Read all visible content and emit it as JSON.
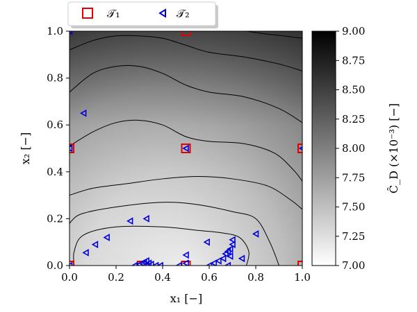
{
  "chart_data": {
    "type": "scatter",
    "xlabel": "x₁ [−]",
    "ylabel": "x₂ [−]",
    "xlim": [
      0.0,
      1.0
    ],
    "ylim": [
      0.0,
      1.0
    ],
    "x_ticks": [
      "0.0",
      "0.2",
      "0.4",
      "0.6",
      "0.8",
      "1.0"
    ],
    "y_ticks": [
      "0.0",
      "0.2",
      "0.4",
      "0.6",
      "0.8",
      "1.0"
    ],
    "background": "filled contour, white (low) to black (high)",
    "colorbar": {
      "label": "Ĉ_D (×10⁻³) [−]",
      "range": [
        7.0,
        9.0
      ],
      "ticks": [
        "7.00",
        "7.25",
        "7.50",
        "7.75",
        "8.00",
        "8.25",
        "8.50",
        "8.75",
        "9.00"
      ]
    },
    "legend": {
      "placement": "top",
      "entries": [
        {
          "label": "𝒯₁",
          "marker": "square",
          "color": "#e00000"
        },
        {
          "label": "𝒯₂",
          "marker": "triangle-left",
          "color": "#0000dd"
        }
      ]
    },
    "series": [
      {
        "name": "𝒯₁",
        "points": [
          {
            "x": 0.5,
            "y": 1.0
          },
          {
            "x": 0.0,
            "y": 0.5
          },
          {
            "x": 0.5,
            "y": 0.5
          },
          {
            "x": 1.0,
            "y": 0.5
          },
          {
            "x": 0.0,
            "y": 0.0
          },
          {
            "x": 0.31,
            "y": 0.0
          },
          {
            "x": 0.5,
            "y": 0.0
          },
          {
            "x": 1.0,
            "y": 0.0
          }
        ]
      },
      {
        "name": "𝒯₂",
        "points": [
          {
            "x": 0.0,
            "y": 1.0
          },
          {
            "x": 0.06,
            "y": 0.65
          },
          {
            "x": 0.0,
            "y": 0.5
          },
          {
            "x": 0.5,
            "y": 0.5
          },
          {
            "x": 1.0,
            "y": 0.5
          },
          {
            "x": 0.26,
            "y": 0.19
          },
          {
            "x": 0.33,
            "y": 0.2
          },
          {
            "x": 0.16,
            "y": 0.12
          },
          {
            "x": 0.11,
            "y": 0.09
          },
          {
            "x": 0.07,
            "y": 0.055
          },
          {
            "x": 0.0,
            "y": 0.0
          },
          {
            "x": 0.8,
            "y": 0.135
          },
          {
            "x": 0.59,
            "y": 0.1
          },
          {
            "x": 0.5,
            "y": 0.045
          },
          {
            "x": 0.5,
            "y": 0.01
          },
          {
            "x": 0.74,
            "y": 0.03
          },
          {
            "x": 0.7,
            "y": 0.11
          },
          {
            "x": 0.7,
            "y": 0.09
          },
          {
            "x": 0.69,
            "y": 0.07
          },
          {
            "x": 0.68,
            "y": 0.06
          },
          {
            "x": 0.67,
            "y": 0.05
          },
          {
            "x": 0.69,
            "y": 0.04
          },
          {
            "x": 0.66,
            "y": 0.03
          },
          {
            "x": 0.64,
            "y": 0.02
          },
          {
            "x": 0.62,
            "y": 0.01
          },
          {
            "x": 0.68,
            "y": 0.0
          },
          {
            "x": 0.6,
            "y": 0.0
          },
          {
            "x": 0.28,
            "y": 0.0
          },
          {
            "x": 0.3,
            "y": 0.005
          },
          {
            "x": 0.31,
            "y": 0.01
          },
          {
            "x": 0.32,
            "y": 0.015
          },
          {
            "x": 0.33,
            "y": 0.02
          },
          {
            "x": 0.34,
            "y": 0.01
          },
          {
            "x": 0.35,
            "y": 0.005
          },
          {
            "x": 0.37,
            "y": 0.0
          },
          {
            "x": 0.39,
            "y": 0.0
          },
          {
            "x": 0.47,
            "y": 0.0
          }
        ]
      }
    ],
    "contour_lines": [
      [
        [
          0.02,
          0.0
        ],
        [
          0.02,
          0.06
        ],
        [
          0.06,
          0.13
        ],
        [
          0.2,
          0.165
        ],
        [
          0.4,
          0.165
        ],
        [
          0.55,
          0.15
        ],
        [
          0.65,
          0.14
        ],
        [
          0.73,
          0.12
        ],
        [
          0.77,
          0.06
        ],
        [
          0.76,
          0.0
        ]
      ],
      [
        [
          0.0,
          0.18
        ],
        [
          0.05,
          0.22
        ],
        [
          0.2,
          0.25
        ],
        [
          0.4,
          0.27
        ],
        [
          0.55,
          0.26
        ],
        [
          0.7,
          0.23
        ],
        [
          0.8,
          0.2
        ],
        [
          0.86,
          0.1
        ],
        [
          0.9,
          0.0
        ]
      ],
      [
        [
          0.0,
          0.3
        ],
        [
          0.1,
          0.33
        ],
        [
          0.25,
          0.35
        ],
        [
          0.4,
          0.37
        ],
        [
          0.55,
          0.38
        ],
        [
          0.7,
          0.37
        ],
        [
          0.85,
          0.34
        ],
        [
          0.95,
          0.28
        ],
        [
          1.0,
          0.24
        ]
      ],
      [
        [
          0.0,
          0.51
        ],
        [
          0.1,
          0.57
        ],
        [
          0.2,
          0.61
        ],
        [
          0.3,
          0.62
        ],
        [
          0.4,
          0.6
        ],
        [
          0.5,
          0.55
        ],
        [
          0.6,
          0.53
        ],
        [
          0.75,
          0.52
        ],
        [
          0.88,
          0.48
        ],
        [
          0.96,
          0.41
        ],
        [
          1.0,
          0.36
        ]
      ],
      [
        [
          0.0,
          0.74
        ],
        [
          0.1,
          0.82
        ],
        [
          0.2,
          0.85
        ],
        [
          0.3,
          0.85
        ],
        [
          0.4,
          0.82
        ],
        [
          0.5,
          0.77
        ],
        [
          0.6,
          0.74
        ],
        [
          0.75,
          0.72
        ],
        [
          0.9,
          0.67
        ],
        [
          1.0,
          0.61
        ]
      ],
      [
        [
          0.0,
          0.92
        ],
        [
          0.1,
          0.96
        ],
        [
          0.2,
          0.98
        ],
        [
          0.3,
          0.98
        ],
        [
          0.4,
          0.97
        ],
        [
          0.5,
          0.94
        ],
        [
          0.6,
          0.91
        ],
        [
          0.75,
          0.89
        ],
        [
          0.9,
          0.86
        ],
        [
          1.0,
          0.83
        ]
      ],
      [
        [
          0.76,
          1.0
        ],
        [
          0.83,
          0.99
        ],
        [
          0.92,
          0.98
        ],
        [
          1.0,
          0.97
        ]
      ]
    ]
  }
}
